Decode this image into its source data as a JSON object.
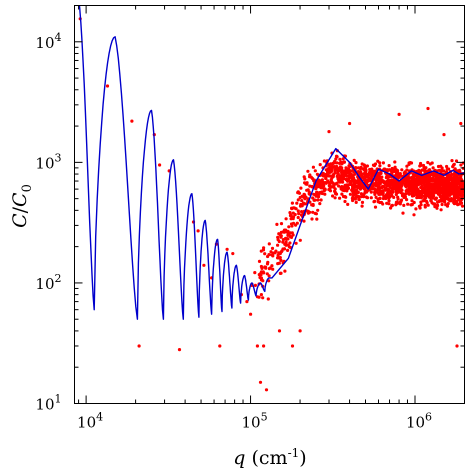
{
  "chart_data": {
    "type": "scatter",
    "title": "",
    "xlabel": "q (cm⁻¹)",
    "ylabel": "C/C₀",
    "xscale": "log",
    "yscale": "log",
    "xlim": [
      8500,
      2000000
    ],
    "ylim": [
      10,
      20000
    ],
    "x_tick_labels": [
      {
        "value": 10000,
        "base": "10",
        "exp": "4"
      },
      {
        "value": 100000,
        "base": "10",
        "exp": "5"
      },
      {
        "value": 1000000,
        "base": "10",
        "exp": "6"
      }
    ],
    "y_tick_labels": [
      {
        "value": 10,
        "base": "10",
        "exp": "1"
      },
      {
        "value": 100,
        "base": "10",
        "exp": "2"
      },
      {
        "value": 1000,
        "base": "10",
        "exp": "3"
      },
      {
        "value": 10000,
        "base": "10",
        "exp": "4"
      }
    ],
    "grid": false,
    "colors": {
      "points": "#ff0000",
      "curve": "#0000cc"
    },
    "series": [
      {
        "kind": "points",
        "data_sample": [
          [
            9200,
            15500
          ],
          [
            13500,
            4300
          ],
          [
            19000,
            2200
          ],
          [
            21000,
            30
          ],
          [
            26000,
            1700
          ],
          [
            28000,
            950
          ],
          [
            32000,
            850
          ],
          [
            37000,
            28
          ],
          [
            45000,
            320
          ],
          [
            48000,
            270
          ],
          [
            52000,
            140
          ],
          [
            58000,
            110
          ],
          [
            62000,
            210
          ],
          [
            65000,
            30
          ],
          [
            72000,
            190
          ],
          [
            78000,
            175
          ],
          [
            88000,
            80
          ],
          [
            95000,
            70
          ],
          [
            100000,
            55
          ],
          [
            110000,
            30
          ],
          [
            115000,
            15
          ],
          [
            120000,
            30
          ],
          [
            125000,
            13
          ],
          [
            150000,
            40
          ],
          [
            180000,
            30
          ],
          [
            200000,
            40
          ],
          [
            300000,
            1800
          ],
          [
            400000,
            2100
          ],
          [
            800000,
            2500
          ],
          [
            1200000,
            2800
          ],
          [
            1500000,
            1700
          ],
          [
            1800000,
            30
          ],
          [
            1900000,
            2100
          ]
        ],
        "band": [
          {
            "x": 100000,
            "median": 95,
            "spread": 0.25
          },
          {
            "x": 150000,
            "median": 180,
            "spread": 0.3
          },
          {
            "x": 200000,
            "median": 450,
            "spread": 0.3
          },
          {
            "x": 300000,
            "median": 800,
            "spread": 0.22
          },
          {
            "x": 500000,
            "median": 680,
            "spread": 0.2
          },
          {
            "x": 1000000,
            "median": 650,
            "spread": 0.2
          },
          {
            "x": 2000000,
            "median": 640,
            "spread": 0.2
          }
        ]
      },
      {
        "kind": "line",
        "peaks": [
          [
            9000,
            23000
          ],
          [
            15000,
            11000
          ],
          [
            25000,
            2700
          ],
          [
            34000,
            1050
          ],
          [
            44000,
            550
          ],
          [
            53000,
            330
          ],
          [
            63000,
            230
          ],
          [
            72000,
            180
          ],
          [
            82000,
            140
          ],
          [
            92000,
            115
          ],
          [
            102000,
            100
          ],
          [
            115000,
            100
          ],
          [
            130000,
            110
          ]
        ],
        "minima": [
          [
            11200,
            60
          ],
          [
            20500,
            50
          ],
          [
            29500,
            50
          ],
          [
            39000,
            50
          ],
          [
            48500,
            52
          ],
          [
            58000,
            55
          ],
          [
            67000,
            58
          ],
          [
            77000,
            62
          ],
          [
            87000,
            68
          ],
          [
            97000,
            72
          ],
          [
            108000,
            78
          ],
          [
            122000,
            85
          ]
        ],
        "smooth": [
          [
            135000,
            110
          ],
          [
            170000,
            160
          ],
          [
            200000,
            300
          ],
          [
            250000,
            700
          ],
          [
            330000,
            1300
          ],
          [
            400000,
            1000
          ],
          [
            460000,
            750
          ],
          [
            520000,
            600
          ],
          [
            600000,
            880
          ],
          [
            700000,
            800
          ],
          [
            800000,
            700
          ],
          [
            950000,
            850
          ],
          [
            1100000,
            780
          ],
          [
            1300000,
            850
          ],
          [
            1500000,
            780
          ],
          [
            1700000,
            860
          ],
          [
            1850000,
            800
          ],
          [
            2000000,
            820
          ]
        ]
      }
    ]
  }
}
